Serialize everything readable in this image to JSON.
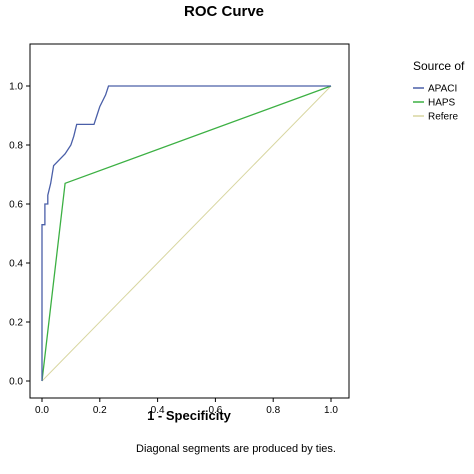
{
  "chart_data": {
    "type": "line",
    "title": "ROC Curve",
    "xlabel": "1 - Specificity",
    "ylabel": "",
    "xlim": [
      0.0,
      1.0
    ],
    "ylim": [
      0.0,
      1.0
    ],
    "x_ticks": [
      "0.0",
      "0.2",
      "0.4",
      "0.6",
      "0.8",
      "1.0"
    ],
    "y_ticks": [
      "0.0",
      "0.2",
      "0.4",
      "0.6",
      "0.8",
      "1.0"
    ],
    "x_tick_values": [
      0,
      0.2,
      0.4,
      0.6,
      0.8,
      1.0
    ],
    "y_tick_values": [
      0,
      0.2,
      0.4,
      0.6,
      0.8,
      1.0
    ],
    "grid": false,
    "legend_position": "right (cropped)",
    "legend_title": "Source of",
    "note": "Diagonal segments are produced by ties.",
    "series": [
      {
        "name": "APACI",
        "color": "#4a5fa8",
        "points": [
          [
            0,
            0
          ],
          [
            0,
            0.53
          ],
          [
            0.01,
            0.53
          ],
          [
            0.01,
            0.6
          ],
          [
            0.02,
            0.6
          ],
          [
            0.02,
            0.63
          ],
          [
            0.03,
            0.67
          ],
          [
            0.04,
            0.73
          ],
          [
            0.06,
            0.75
          ],
          [
            0.08,
            0.77
          ],
          [
            0.1,
            0.8
          ],
          [
            0.11,
            0.83
          ],
          [
            0.12,
            0.87
          ],
          [
            0.14,
            0.87
          ],
          [
            0.15,
            0.87
          ],
          [
            0.18,
            0.87
          ],
          [
            0.19,
            0.9
          ],
          [
            0.2,
            0.93
          ],
          [
            0.22,
            0.97
          ],
          [
            0.23,
            1.0
          ],
          [
            1.0,
            1.0
          ]
        ]
      },
      {
        "name": "HAPS",
        "color": "#3cb043",
        "points": [
          [
            0,
            0
          ],
          [
            0.08,
            0.67
          ],
          [
            1.0,
            1.0
          ]
        ]
      },
      {
        "name": "Refere",
        "color": "#d8d6a0",
        "points": [
          [
            0,
            0
          ],
          [
            1.0,
            1.0
          ]
        ]
      }
    ]
  }
}
